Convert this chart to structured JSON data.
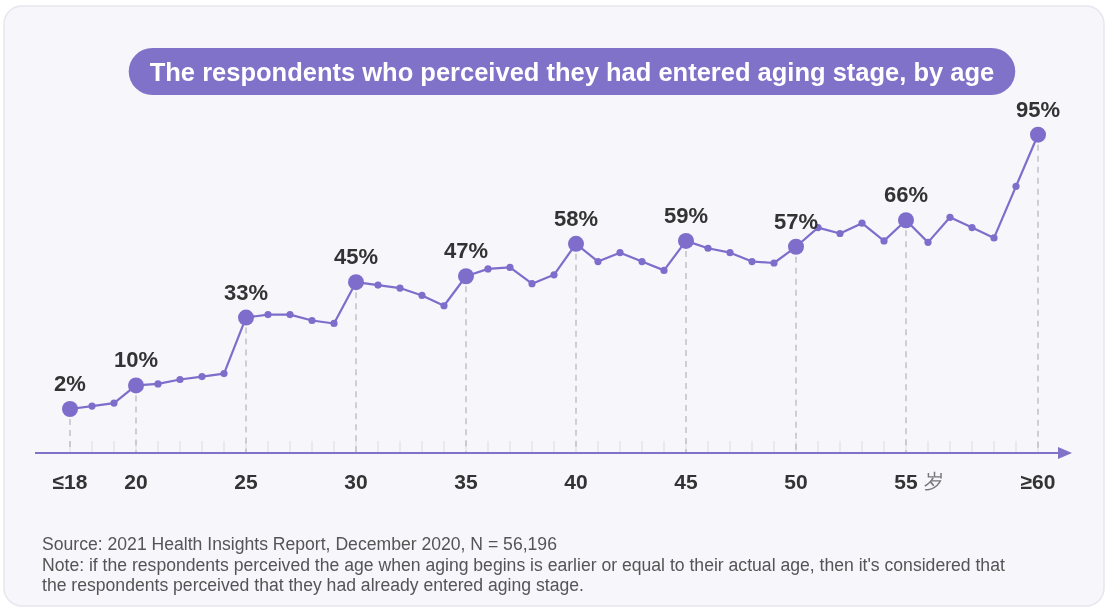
{
  "chart_data": {
    "type": "line",
    "title": "The respondents who perceived they had entered aging stage, by age",
    "xlabel": "岁",
    "categories": [
      "≤18",
      null,
      null,
      "20",
      null,
      null,
      null,
      null,
      "25",
      null,
      null,
      null,
      null,
      "30",
      null,
      null,
      null,
      null,
      "35",
      null,
      null,
      null,
      null,
      "40",
      null,
      null,
      null,
      null,
      "45",
      null,
      null,
      null,
      null,
      "50",
      null,
      null,
      null,
      null,
      "55",
      null,
      null,
      null,
      null,
      null,
      "≥60"
    ],
    "series": [
      {
        "color": "#7e6dcb",
        "values": [
          2,
          3,
          4,
          10,
          10.5,
          12,
          13,
          14,
          33,
          34,
          34,
          32,
          31,
          45,
          44,
          43,
          40.5,
          37,
          47,
          49.5,
          50,
          44.5,
          47.5,
          58,
          52,
          55,
          52,
          49,
          59,
          56.5,
          55,
          52,
          51.5,
          57,
          63.5,
          61.5,
          65,
          59,
          66,
          58.5,
          67,
          63.5,
          60,
          77.5,
          95
        ],
        "value_labels": [
          "2%",
          null,
          null,
          "10%",
          null,
          null,
          null,
          null,
          "33%",
          null,
          null,
          null,
          null,
          "45%",
          null,
          null,
          null,
          null,
          "47%",
          null,
          null,
          null,
          null,
          "58%",
          null,
          null,
          null,
          null,
          "59%",
          null,
          null,
          null,
          null,
          "57%",
          null,
          null,
          null,
          null,
          "66%",
          null,
          null,
          null,
          null,
          null,
          "95%"
        ]
      }
    ],
    "tick_labels": "x",
    "grid": "x",
    "marker": "circle",
    "line_style": "solid",
    "annotations": [
      "Source: 2021 Health Insights Report, December 2020, N = 56,196",
      "Note: if the respondents perceived the age when aging begins is earlier or equal to their actual age, then it's considered that the respondents perceived that they had already entered aging stage."
    ]
  }
}
